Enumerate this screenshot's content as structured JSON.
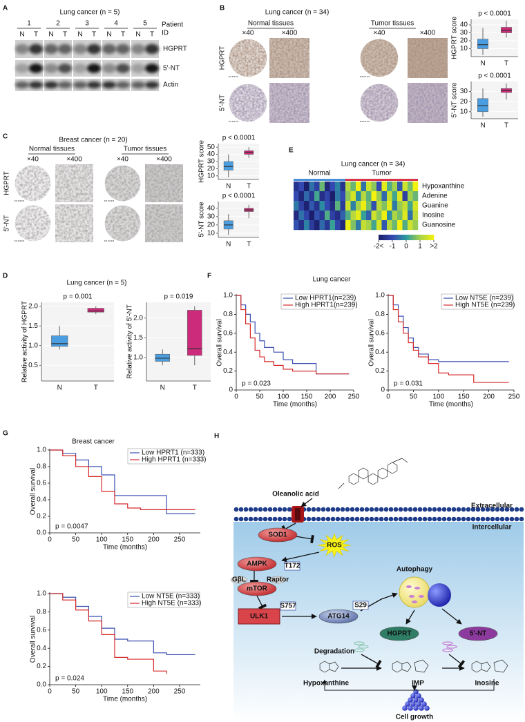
{
  "panel_a": {
    "label": "A",
    "title": "Lung cancer (n = 5)",
    "patients": [
      "1",
      "2",
      "3",
      "4",
      "5"
    ],
    "lanes": [
      "N",
      "T"
    ],
    "patient_label": [
      "Patient",
      "ID"
    ],
    "rows": [
      "HGPRT",
      "5'-NT",
      "Actin"
    ]
  },
  "panel_b": {
    "label": "B",
    "title": "Lung cancer (n = 34)",
    "groups": [
      "Normal tissues",
      "Tumor tissues"
    ],
    "magnifications": [
      "×40",
      "×400"
    ],
    "rows": [
      "HGPRT",
      "5'-NT"
    ],
    "charts": [
      {
        "type": "box",
        "p_label": "p < 0.0001",
        "ylabel": "HGPRT score",
        "categories": [
          "N",
          "T"
        ],
        "colors": [
          "#4a9de0",
          "#cc2a7a"
        ],
        "ylim": [
          0,
          47
        ],
        "yticks": [
          10,
          20,
          30,
          40
        ],
        "boxes": [
          {
            "min": 2,
            "q1": 10,
            "median": 15,
            "q3": 22,
            "max": 36
          },
          {
            "min": 24,
            "q1": 30,
            "median": 33,
            "q3": 37,
            "max": 45
          }
        ]
      },
      {
        "type": "box",
        "p_label": "p < 0.0001",
        "ylabel": "5'-NT score",
        "categories": [
          "N",
          "T"
        ],
        "colors": [
          "#4a9de0",
          "#cc2a7a"
        ],
        "ylim": [
          3,
          40
        ],
        "yticks": [
          10,
          20,
          30
        ],
        "boxes": [
          {
            "min": 5,
            "q1": 10,
            "median": 16,
            "q3": 23,
            "max": 33
          },
          {
            "min": 22,
            "q1": 29,
            "median": 31,
            "q3": 33,
            "max": 38
          }
        ]
      }
    ]
  },
  "panel_c": {
    "label": "C",
    "title": "Breast cancer (n = 20)",
    "groups": [
      "Normal tissues",
      "Tumor tissues"
    ],
    "magnifications": [
      "×40",
      "×400"
    ],
    "rows": [
      "HGPRT",
      "5'-NT"
    ],
    "charts": [
      {
        "type": "box",
        "p_label": "p < 0.0001",
        "ylabel": "HGPRT score",
        "categories": [
          "N",
          "T"
        ],
        "colors": [
          "#4a9de0",
          "#cc2a7a"
        ],
        "ylim": [
          5,
          55
        ],
        "yticks": [
          10,
          20,
          30,
          40,
          50
        ],
        "boxes": [
          {
            "min": 8,
            "q1": 18,
            "median": 23,
            "q3": 30,
            "max": 40
          },
          {
            "min": 35,
            "q1": 40,
            "median": 43,
            "q3": 45,
            "max": 50
          }
        ]
      },
      {
        "type": "box",
        "p_label": "p < 0.0001",
        "ylabel": "5'-NT score",
        "categories": [
          "N",
          "T"
        ],
        "colors": [
          "#4a9de0",
          "#cc2a7a"
        ],
        "ylim": [
          5,
          48
        ],
        "yticks": [
          10,
          20,
          30,
          40
        ],
        "boxes": [
          {
            "min": 8,
            "q1": 15,
            "median": 20,
            "q3": 25,
            "max": 33
          },
          {
            "min": 28,
            "q1": 36,
            "median": 38,
            "q3": 40,
            "max": 44
          }
        ]
      }
    ]
  },
  "panel_d": {
    "label": "D",
    "title": "Lung cancer (n = 5)",
    "charts": [
      {
        "type": "box",
        "p_label": "p = 0.001",
        "ylabel": "Relative  activity of HGPRT",
        "categories": [
          "N",
          "T"
        ],
        "colors": [
          "#4a9de0",
          "#cc2a7a"
        ],
        "ylim": [
          0.1,
          2.1
        ],
        "yticks": [
          0.5,
          {
            "value": 1,
            "label": "1.0"
          },
          1.5,
          {
            "value": 2,
            "label": "2.0"
          }
        ],
        "boxes": [
          {
            "min": 0.9,
            "q1": 0.98,
            "median": 1.05,
            "q3": 1.25,
            "max": 1.5
          },
          {
            "min": 1.8,
            "q1": 1.85,
            "median": 1.88,
            "q3": 1.95,
            "max": 2.0
          }
        ]
      },
      {
        "type": "box",
        "p_label": "p = 0.019",
        "ylabel": "Relative activity of 5'-NT",
        "categories": [
          "N",
          "T"
        ],
        "colors": [
          "#4a9de0",
          "#cc2a7a"
        ],
        "ylim": [
          0.4,
          2.4
        ],
        "yticks": [
          {
            "value": 1,
            "label": "1.0"
          },
          1.5,
          {
            "value": 2,
            "label": "2.0"
          }
        ],
        "boxes": [
          {
            "min": 0.8,
            "q1": 0.9,
            "median": 0.98,
            "q3": 1.08,
            "max": 1.2
          },
          {
            "min": 0.8,
            "q1": 1.05,
            "median": 1.22,
            "q3": 2.2,
            "max": 2.3
          }
        ]
      }
    ]
  },
  "panel_e": {
    "label": "E",
    "title": "Lung cancer (n = 34)",
    "groups": [
      {
        "name": "Normal",
        "color": "#4a90d9",
        "count": 10
      },
      {
        "name": "Tumor",
        "color": "#d9334a",
        "count": 14
      }
    ],
    "rows": [
      "Hypoxanthine",
      "Adenine",
      "Guanine",
      "Inosine",
      "Guanosine"
    ],
    "values": [
      [
        -1.5,
        -1,
        -2,
        -0.5,
        -1.2,
        0.5,
        -1.8,
        -1,
        -0.3,
        -1.5,
        1.2,
        0.5,
        2,
        -0.5,
        1.5,
        0.8,
        -1,
        1.8,
        0.3,
        1,
        -0.8,
        1.5,
        0.6,
        2
      ],
      [
        -1,
        -1.8,
        -0.6,
        -1.4,
        0.2,
        -1.6,
        -1.1,
        -2,
        -0.4,
        -1,
        0.8,
        1.6,
        -0.2,
        1.2,
        0.4,
        2,
        0.9,
        -0.6,
        1.4,
        0.2,
        1.7,
        -1.2,
        1,
        0.5
      ],
      [
        -0.4,
        -1.2,
        -1.9,
        -0.8,
        -1.5,
        -0.2,
        -1,
        -1.7,
        0.4,
        -1.3,
        1.5,
        -0.3,
        1,
        1.9,
        0.6,
        -0.9,
        1.3,
        0.7,
        1.8,
        -0.4,
        0.9,
        1.4,
        0.2,
        1.6
      ],
      [
        -1.7,
        -0.5,
        -1.1,
        -2,
        -0.9,
        -1.4,
        0.3,
        -1.2,
        -1.6,
        -0.7,
        0.3,
        1.2,
        1.8,
        0.1,
        -0.7,
        1.5,
        0.8,
        1.9,
        -0.2,
        1.1,
        0.6,
        1.7,
        -0.5,
        1.3
      ],
      [
        -0.9,
        -1.6,
        -0.3,
        -1.3,
        -1.9,
        -0.6,
        -1.4,
        0.1,
        -1.1,
        -1.8,
        1.9,
        0.7,
        -0.4,
        1.4,
        1,
        0.2,
        1.6,
        -0.8,
        1.2,
        0.5,
        2,
        0.3,
        1.5,
        0.9
      ]
    ],
    "clim": [
      -2,
      2
    ],
    "colormap": [
      "#1b1f6b",
      "#3348b0",
      "#2b9aa0",
      "#a6d24a",
      "#f4f10e"
    ],
    "colorbar_ticks": [
      {
        "value": -2,
        "label": "-2<"
      },
      -1,
      0,
      1,
      {
        "value": 2,
        "label": ">2"
      }
    ]
  },
  "panel_f": {
    "label": "F",
    "title": "Lung cancer",
    "charts": [
      {
        "type": "km",
        "ylabel": "Overall  survival",
        "xlabel": "Time (months)",
        "p_label": "p = 0.023",
        "xlim": [
          0,
          250
        ],
        "ylim": [
          0,
          1
        ],
        "xticks": [
          0,
          50,
          100,
          150,
          200,
          250
        ],
        "yticks": [
          0,
          0.2,
          0.4,
          0.6,
          0.8,
          {
            "value": 1,
            "label": "1.0"
          }
        ],
        "x": [
          0,
          10,
          20,
          30,
          40,
          50,
          60,
          80,
          100,
          120,
          170,
          240
        ],
        "series": [
          {
            "name": "Low HPRT1(n=239)",
            "color": "#3a4fb0",
            "values": [
              1,
              0.9,
              0.8,
              0.72,
              0.6,
              0.52,
              0.45,
              0.4,
              0.32,
              0.28,
              0.17,
              0.17
            ]
          },
          {
            "name": "High HPRT1(n=239)",
            "color": "#d62a2a",
            "values": [
              1,
              0.85,
              0.7,
              0.55,
              0.42,
              0.35,
              0.3,
              0.26,
              0.22,
              0.2,
              0.17,
              0.17
            ]
          }
        ]
      },
      {
        "type": "km",
        "ylabel": "Overall survival",
        "xlabel": "Time (months)",
        "p_label": "p = 0.031",
        "xlim": [
          0,
          250
        ],
        "ylim": [
          0,
          1
        ],
        "xticks": [
          0,
          50,
          100,
          150,
          200,
          250
        ],
        "yticks": [
          0,
          0.2,
          0.4,
          0.6,
          0.8,
          {
            "value": 1,
            "label": "1.0"
          }
        ],
        "x": [
          0,
          10,
          20,
          30,
          40,
          50,
          60,
          80,
          100,
          120,
          170,
          240
        ],
        "series": [
          {
            "name": "Low NT5E (n=239)",
            "color": "#3a4fb0",
            "values": [
              1,
              0.9,
              0.78,
              0.66,
              0.55,
              0.45,
              0.38,
              0.32,
              0.3,
              0.3,
              0.3,
              0.3
            ]
          },
          {
            "name": "High NT5E (n=239)",
            "color": "#d62a2a",
            "values": [
              1,
              0.85,
              0.72,
              0.6,
              0.5,
              0.42,
              0.35,
              0.28,
              0.18,
              0.16,
              0.08,
              0.08
            ]
          }
        ]
      }
    ]
  },
  "panel_g": {
    "label": "G",
    "title": "Breast cancer",
    "charts": [
      {
        "type": "km",
        "ylabel": "Overall survival",
        "xlabel": "Time (months)",
        "p_label": "p = 0.0047",
        "xlim": [
          0,
          290
        ],
        "ylim": [
          0,
          1
        ],
        "xticks": [
          0,
          50,
          100,
          150,
          200,
          250
        ],
        "yticks": [
          {
            "value": 0,
            "label": "0.0"
          },
          0.2,
          0.4,
          0.6,
          0.8,
          {
            "value": 1,
            "label": "1.0"
          }
        ],
        "x": [
          0,
          25,
          50,
          75,
          100,
          125,
          150,
          175,
          200,
          225,
          250,
          280
        ],
        "series": [
          {
            "name": "Low HPRT1 (n=333)",
            "color": "#3a4fb0",
            "values": [
              1,
              0.96,
              0.88,
              0.8,
              0.7,
              0.45,
              0.45,
              0.45,
              0.45,
              0.23,
              0.23,
              0.23
            ]
          },
          {
            "name": "High HPRT1 (n=333)",
            "color": "#d62a2a",
            "values": [
              1,
              0.93,
              0.8,
              0.68,
              0.5,
              0.35,
              0.3,
              0.28,
              0.28,
              0.28,
              0.28,
              0.28
            ]
          }
        ]
      },
      {
        "type": "km",
        "ylabel": "Overall survival",
        "xlabel": "Time (months)",
        "p_label": "p = 0.024",
        "xlim": [
          0,
          290
        ],
        "ylim": [
          0,
          1
        ],
        "xticks": [
          0,
          50,
          100,
          150,
          200,
          250
        ],
        "yticks": [
          {
            "value": 0,
            "label": "0.0"
          },
          0.2,
          0.4,
          0.6,
          0.8,
          {
            "value": 1,
            "label": "1.0"
          }
        ],
        "x": [
          0,
          25,
          50,
          75,
          100,
          125,
          150,
          175,
          200,
          225,
          250,
          280
        ],
        "series": [
          {
            "name": "Low NT5E (n=333)",
            "color": "#3a4fb0",
            "values": [
              1,
              0.96,
              0.86,
              0.75,
              0.62,
              0.5,
              0.48,
              0.48,
              0.35,
              0.33,
              0.33,
              0.33
            ]
          },
          {
            "name": "High NT5E (n=333)",
            "color": "#d62a2a",
            "values": [
              1,
              0.93,
              0.82,
              0.7,
              0.55,
              0.3,
              0.28,
              0.28,
              0.15,
              0.12,
              null,
              null
            ]
          }
        ]
      }
    ]
  },
  "panel_h": {
    "label": "H",
    "nodes": [
      {
        "label": "Oleanolic acid"
      },
      {
        "label": "Extracellular"
      },
      {
        "label": "Intercellular"
      },
      {
        "label": "SOD1"
      },
      {
        "label": "ROS"
      },
      {
        "label": "AMPK"
      },
      {
        "label": "T172"
      },
      {
        "label": "GβL"
      },
      {
        "label": "Raptor"
      },
      {
        "label": "mTOR"
      },
      {
        "label": "ULK1"
      },
      {
        "label": "S757"
      },
      {
        "label": "ATG14"
      },
      {
        "label": "S29"
      },
      {
        "label": "Autophagy"
      },
      {
        "label": "HGPRT"
      },
      {
        "label": "5'-NT"
      },
      {
        "label": "Degradation"
      },
      {
        "label": "Hypoxanthine"
      },
      {
        "label": "IMP"
      },
      {
        "label": "Inosine"
      },
      {
        "label": "Cell growth"
      }
    ]
  }
}
